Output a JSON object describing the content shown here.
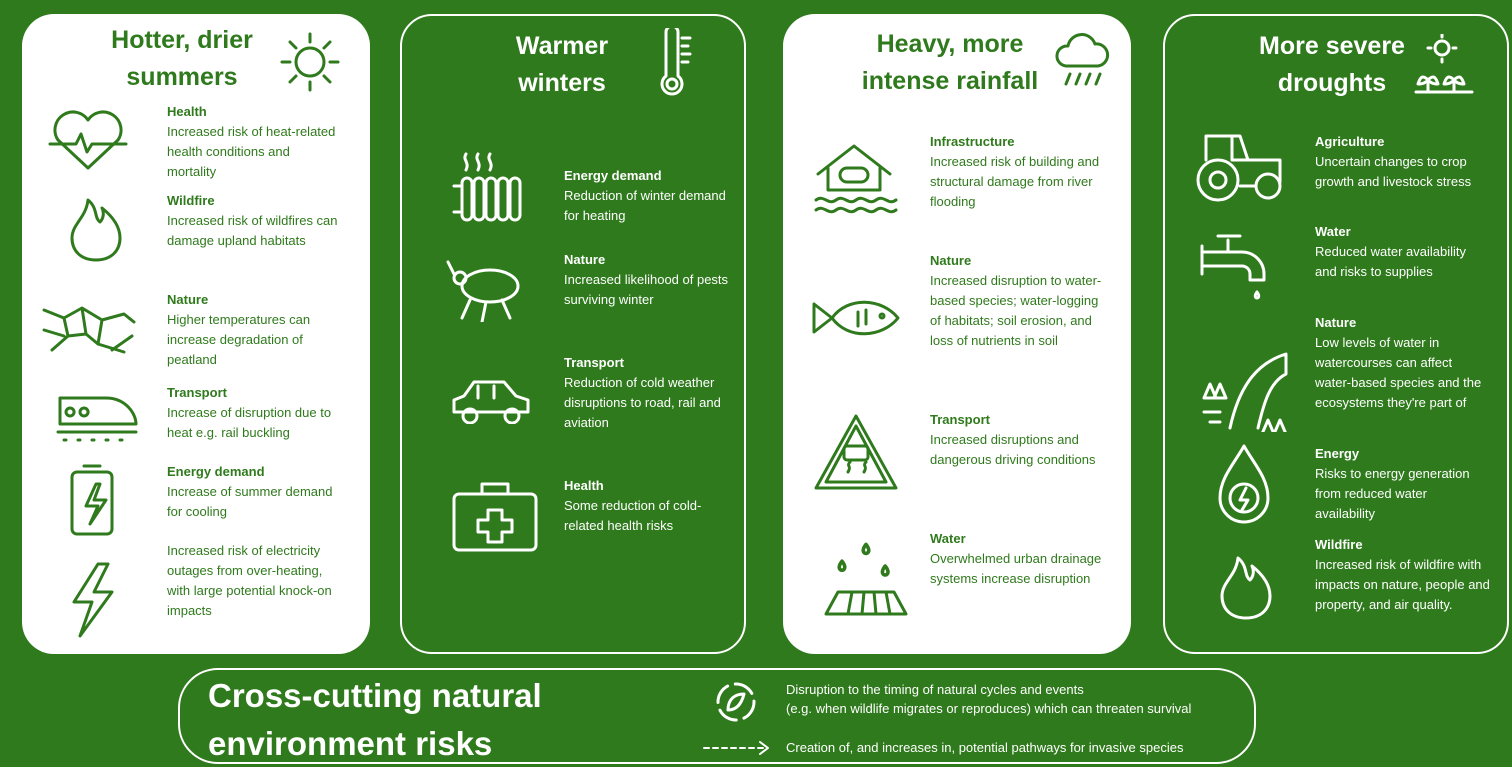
{
  "panels": [
    {
      "title": [
        "Hotter, drier",
        "summers"
      ],
      "items": [
        {
          "heading": "Health",
          "text": "Increased risk of heat-related health conditions and mortality"
        },
        {
          "heading": "Wildfire",
          "text": "Increased risk of wildfires can damage upland habitats"
        },
        {
          "heading": "Nature",
          "text": "Higher temperatures can increase degradation of peatland"
        },
        {
          "heading": "Transport",
          "text": "Increase of disruption due to heat e.g. rail buckling"
        },
        {
          "heading": "Energy demand",
          "text": "Increase of summer demand for cooling"
        },
        {
          "text": "Increased risk of electricity outages from over-heating, with large potential knock-on impacts"
        }
      ]
    },
    {
      "title": [
        "Warmer",
        "winters"
      ],
      "items": [
        {
          "heading": "Energy demand",
          "text": "Reduction of winter demand for heating"
        },
        {
          "heading": "Nature",
          "text": "Increased likelihood of pests surviving winter"
        },
        {
          "heading": "Transport",
          "text": "Reduction of cold weather disruptions to road, rail and aviation"
        },
        {
          "heading": "Health",
          "text": "Some reduction of cold-related health risks"
        }
      ]
    },
    {
      "title": [
        "Heavy, more",
        "intense rainfall"
      ],
      "items": [
        {
          "heading": "Infrastructure",
          "text": "Increased risk of building and structural damage from river flooding"
        },
        {
          "heading": "Nature",
          "text": "Increased disruption to water-based species; water-logging of habitats; soil erosion, and loss of nutrients in soil"
        },
        {
          "heading": "Transport",
          "text": "Increased disruptions and dangerous driving conditions"
        },
        {
          "heading": "Water",
          "text": "Overwhelmed urban drainage systems increase disruption"
        }
      ]
    },
    {
      "title": [
        "More severe",
        "droughts"
      ],
      "items": [
        {
          "heading": "Agriculture",
          "text": "Uncertain changes to crop growth and livestock stress"
        },
        {
          "heading": "Water",
          "text": "Reduced water availability and risks to supplies"
        },
        {
          "heading": "Nature",
          "text": "Low levels of water in watercourses can affect water-based species and the ecosystems they're part of"
        },
        {
          "heading": "Energy",
          "text": "Risks to energy generation from reduced water availability"
        },
        {
          "heading": "Wildfire",
          "text": "Increased risk of wildfire with impacts on nature, people and property, and air quality."
        }
      ]
    }
  ],
  "cross_cutting": {
    "title": [
      "Cross-cutting natural",
      "environment risks"
    ],
    "items": [
      [
        "Disruption to the timing of natural cycles and events",
        "(e.g. when wildlife migrates or reproduces) which can threaten survival"
      ],
      [
        "Creation of, and increases in, potential pathways for invasive species"
      ]
    ]
  }
}
